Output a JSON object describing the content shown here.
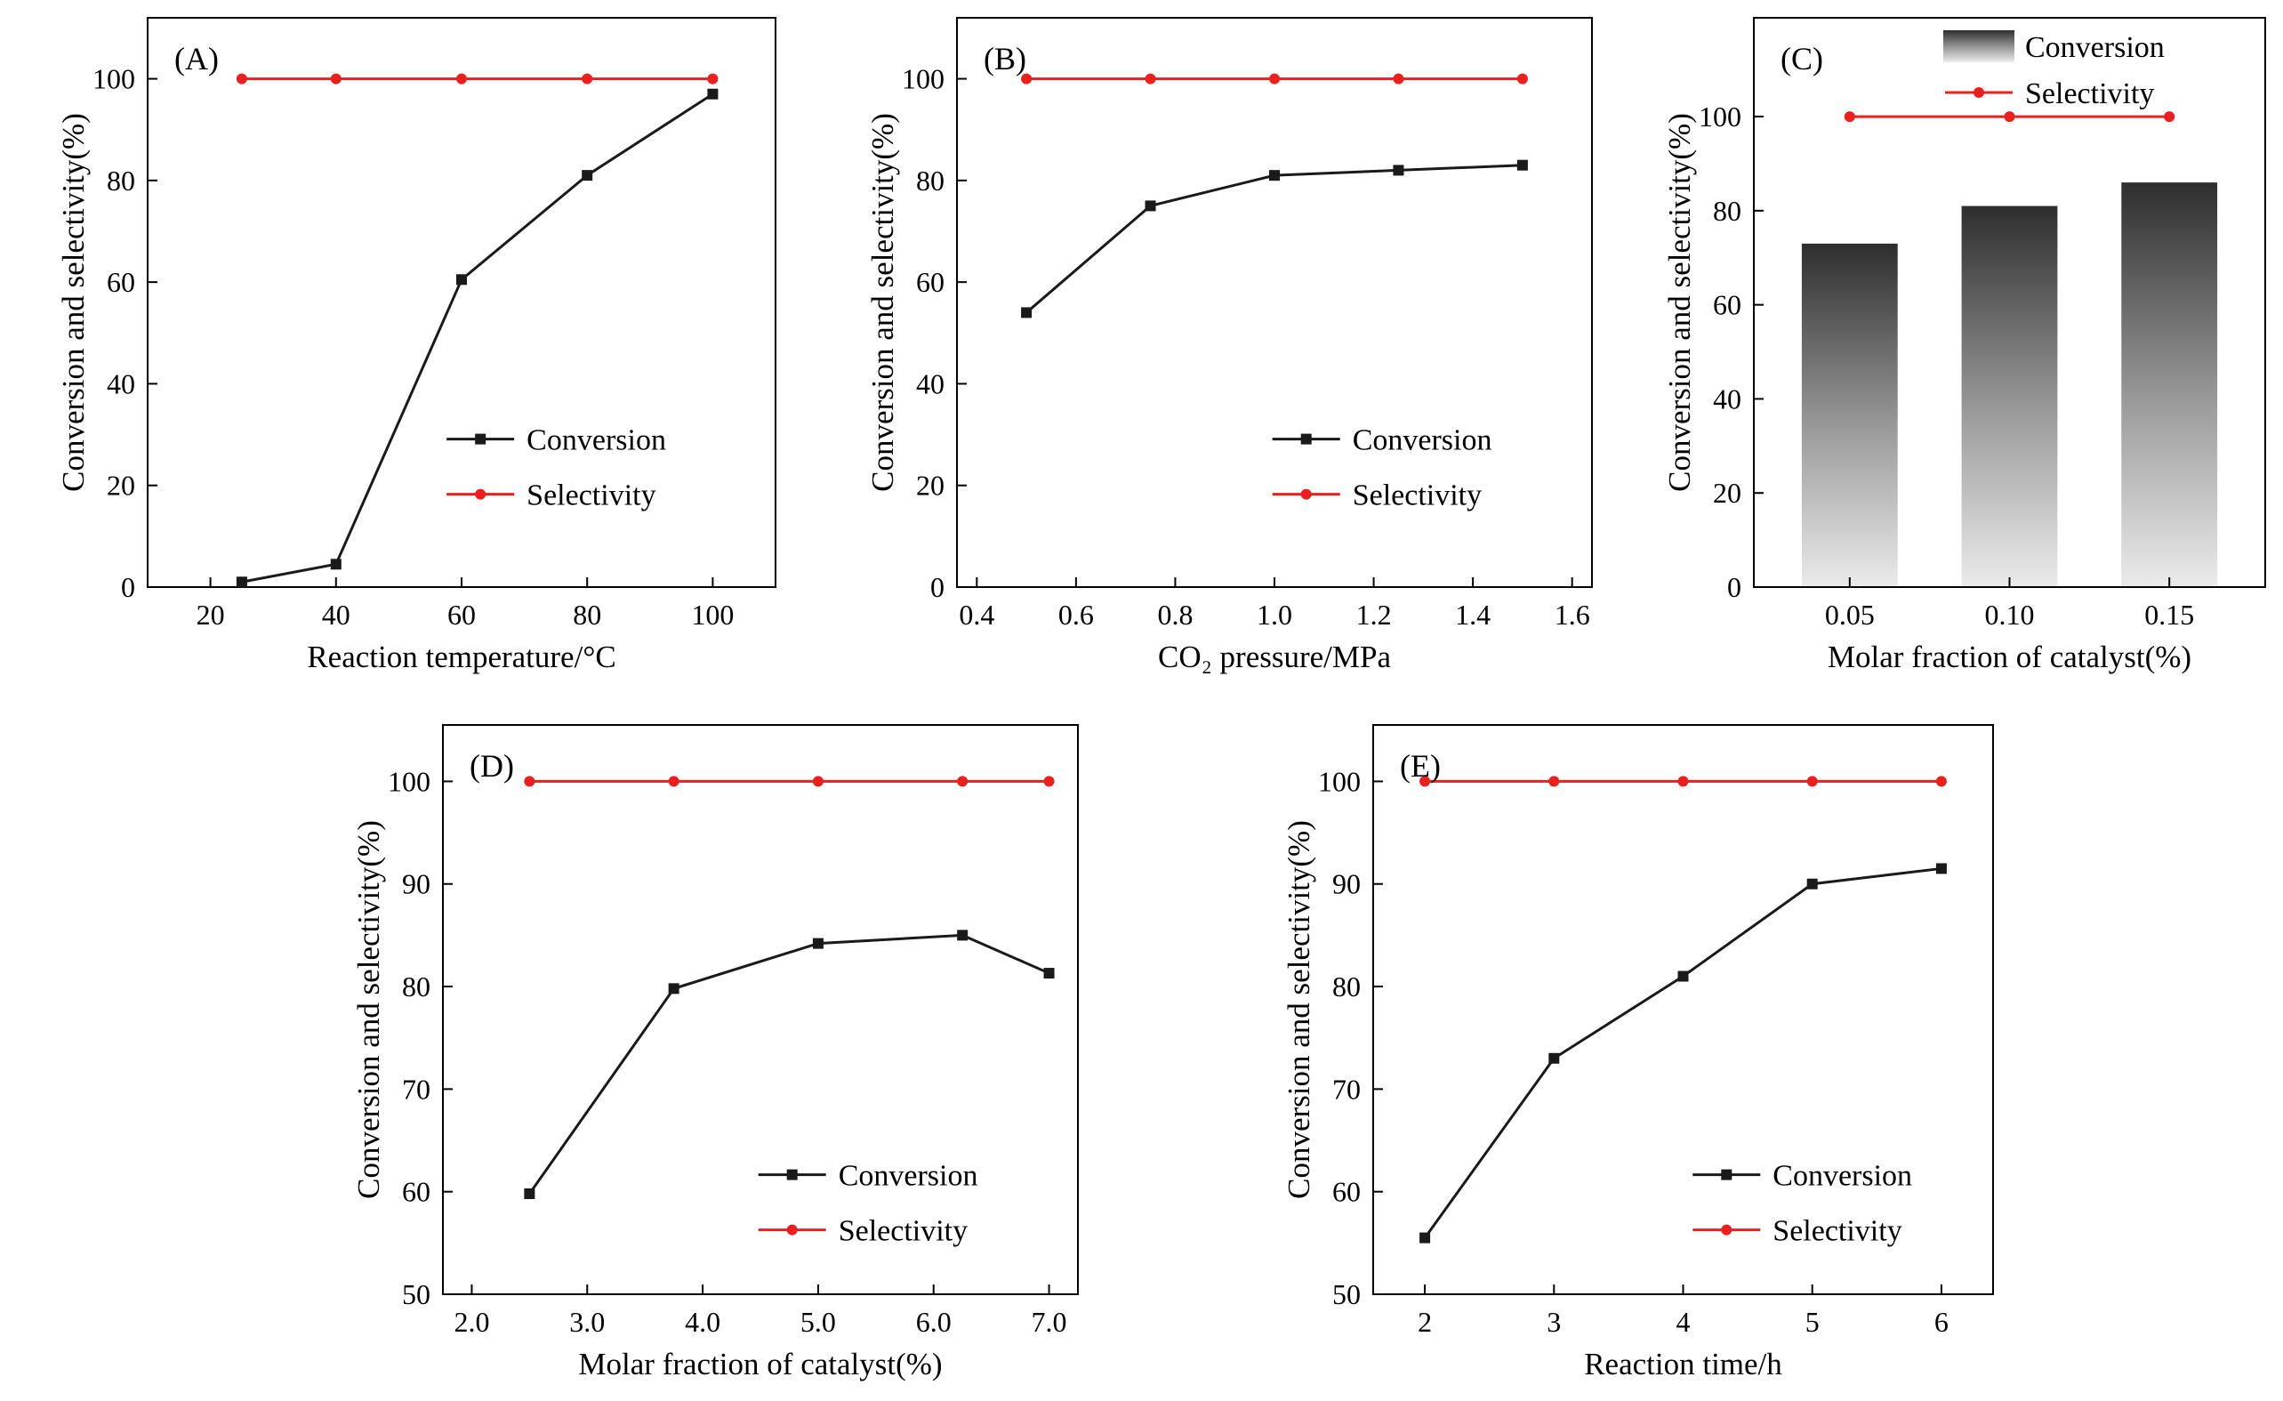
{
  "figure": {
    "background": "#ffffff",
    "conversion_color": "#1a1a1a",
    "selectivity_color": "#e8201e"
  },
  "chart_data": [
    {
      "id": "A",
      "type": "line",
      "panel_label": "(A)",
      "xlabel": "Reaction temperature/°C",
      "ylabel": "Conversion and selectivity(%)",
      "xlim": [
        10,
        110
      ],
      "ylim": [
        0,
        112
      ],
      "xticks": [
        20,
        40,
        60,
        80,
        100
      ],
      "xtick_labels": [
        "20",
        "40",
        "60",
        "80",
        "100"
      ],
      "yticks": [
        0,
        20,
        40,
        60,
        80,
        100
      ],
      "ytick_labels": [
        "0",
        "20",
        "40",
        "60",
        "80",
        "100"
      ],
      "legend": {
        "fx": 0.53,
        "fy": 0.74
      },
      "series": [
        {
          "name": "Conversion",
          "type": "line",
          "color": "#1a1a1a",
          "marker": "square",
          "x": [
            25,
            40,
            60,
            80,
            100
          ],
          "y": [
            1,
            4.5,
            60.5,
            81,
            97
          ]
        },
        {
          "name": "Selectivity",
          "type": "line",
          "color": "#e8201e",
          "marker": "circle",
          "x": [
            25,
            40,
            60,
            80,
            100
          ],
          "y": [
            100,
            100,
            100,
            100,
            100
          ]
        }
      ]
    },
    {
      "id": "B",
      "type": "line",
      "panel_label": "(B)",
      "xlabel": "CO₂ pressure/MPa",
      "ylabel": "Conversion and selectivity(%)",
      "xlim": [
        0.36,
        1.64
      ],
      "ylim": [
        0,
        112
      ],
      "xticks": [
        0.4,
        0.6,
        0.8,
        1.0,
        1.2,
        1.4,
        1.6
      ],
      "xtick_labels": [
        "0.4",
        "0.6",
        "0.8",
        "1.0",
        "1.2",
        "1.4",
        "1.6"
      ],
      "yticks": [
        0,
        20,
        40,
        60,
        80,
        100
      ],
      "ytick_labels": [
        "0",
        "20",
        "40",
        "60",
        "80",
        "100"
      ],
      "legend": {
        "fx": 0.55,
        "fy": 0.74
      },
      "series": [
        {
          "name": "Conversion",
          "type": "line",
          "color": "#1a1a1a",
          "marker": "square",
          "x": [
            0.5,
            0.75,
            1.0,
            1.25,
            1.5
          ],
          "y": [
            54,
            75,
            81,
            82,
            83
          ]
        },
        {
          "name": "Selectivity",
          "type": "line",
          "color": "#e8201e",
          "marker": "circle",
          "x": [
            0.5,
            0.75,
            1.0,
            1.25,
            1.5
          ],
          "y": [
            100,
            100,
            100,
            100,
            100
          ]
        }
      ]
    },
    {
      "id": "C",
      "type": "bar",
      "panel_label": "(C)",
      "xlabel": "Molar fraction of catalyst(%)",
      "ylabel": "Conversion and selectivity(%)",
      "xlim": [
        0.02,
        0.18
      ],
      "ylim": [
        0,
        121
      ],
      "xticks": [
        0.05,
        0.1,
        0.15
      ],
      "xtick_labels": [
        "0.05",
        "0.10",
        "0.15"
      ],
      "yticks": [
        0,
        20,
        40,
        60,
        80,
        100
      ],
      "ytick_labels": [
        "0",
        "20",
        "40",
        "60",
        "80",
        "100"
      ],
      "legend": {
        "fx": 0.44,
        "fy": 0.05,
        "dy": 52
      },
      "series": [
        {
          "name": "Conversion",
          "type": "bar",
          "bar_width": 0.03,
          "gradient": [
            "#2e2e2e",
            "#9c9c9c",
            "#ebebeb"
          ],
          "x": [
            0.05,
            0.1,
            0.15
          ],
          "y": [
            73,
            81,
            86
          ]
        },
        {
          "name": "Selectivity",
          "type": "line",
          "color": "#e8201e",
          "marker": "circle",
          "x": [
            0.05,
            0.1,
            0.15
          ],
          "y": [
            100,
            100,
            100
          ]
        }
      ]
    },
    {
      "id": "D",
      "type": "line",
      "panel_label": "(D)",
      "xlabel": "Molar fraction of catalyst(%)",
      "ylabel": "Conversion and selectivity(%)",
      "xlim": [
        1.75,
        7.25
      ],
      "ylim": [
        50,
        105.5
      ],
      "xticks": [
        2.0,
        3.0,
        4.0,
        5.0,
        6.0,
        7.0
      ],
      "xtick_labels": [
        "2.0",
        "3.0",
        "4.0",
        "5.0",
        "6.0",
        "7.0"
      ],
      "yticks": [
        50,
        60,
        70,
        80,
        90,
        100
      ],
      "ytick_labels": [
        "50",
        "60",
        "70",
        "80",
        "90",
        "100"
      ],
      "legend": {
        "fx": 0.55,
        "fy": 0.79
      },
      "series": [
        {
          "name": "Conversion",
          "type": "line",
          "color": "#1a1a1a",
          "marker": "square",
          "x": [
            2.5,
            3.75,
            5.0,
            6.25,
            7.0
          ],
          "y": [
            59.8,
            79.8,
            84.2,
            85,
            81.3
          ]
        },
        {
          "name": "Selectivity",
          "type": "line",
          "color": "#e8201e",
          "marker": "circle",
          "x": [
            2.5,
            3.75,
            5.0,
            6.25,
            7.0
          ],
          "y": [
            100,
            100,
            100,
            100,
            100
          ]
        }
      ]
    },
    {
      "id": "E",
      "type": "line",
      "panel_label": "(E)",
      "xlabel": "Reaction time/h",
      "ylabel": "Conversion and selectivity(%)",
      "xlim": [
        1.6,
        6.4
      ],
      "ylim": [
        50,
        105.5
      ],
      "xticks": [
        2,
        3,
        4,
        5,
        6
      ],
      "xtick_labels": [
        "2",
        "3",
        "4",
        "5",
        "6"
      ],
      "yticks": [
        50,
        60,
        70,
        80,
        90,
        100
      ],
      "ytick_labels": [
        "50",
        "60",
        "70",
        "80",
        "90",
        "100"
      ],
      "legend": {
        "fx": 0.57,
        "fy": 0.79
      },
      "series": [
        {
          "name": "Conversion",
          "type": "line",
          "color": "#1a1a1a",
          "marker": "square",
          "x": [
            2,
            3,
            4,
            5,
            6
          ],
          "y": [
            55.5,
            73,
            81,
            90,
            91.5
          ]
        },
        {
          "name": "Selectivity",
          "type": "line",
          "color": "#e8201e",
          "marker": "circle",
          "x": [
            2,
            3,
            4,
            5,
            6
          ],
          "y": [
            100,
            100,
            100,
            100,
            100
          ]
        }
      ]
    }
  ]
}
